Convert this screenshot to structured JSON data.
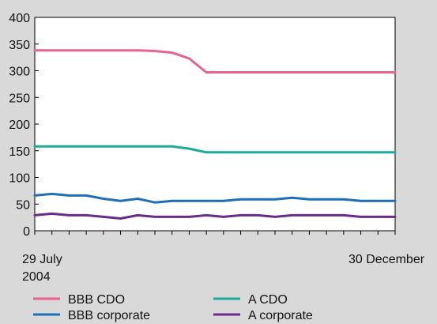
{
  "chart_data": {
    "type": "line",
    "x": [
      "29 July 2004",
      "",
      "",
      "",
      "",
      "",
      "",
      "",
      "",
      "",
      "",
      "",
      "",
      "",
      "",
      "",
      "",
      "",
      "",
      "",
      "",
      "30 December"
    ],
    "x_tick_labels": [
      [
        "29 July",
        "2004"
      ],
      [
        "30 December"
      ]
    ],
    "ylim": [
      0,
      400
    ],
    "y_ticks": [
      0,
      50,
      100,
      150,
      200,
      250,
      300,
      350,
      400
    ],
    "grid": false,
    "legend_position": "bottom",
    "series": [
      {
        "name": "BBB CDO",
        "color": "#e8638f",
        "values": [
          338,
          338,
          338,
          338,
          338,
          338,
          338,
          337,
          334,
          323,
          297,
          297,
          297,
          297,
          297,
          297,
          297,
          297,
          297,
          297,
          297,
          297
        ]
      },
      {
        "name": "A CDO",
        "color": "#1aab9b",
        "values": [
          158,
          158,
          158,
          158,
          158,
          158,
          158,
          158,
          158,
          154,
          147,
          147,
          147,
          147,
          147,
          147,
          147,
          147,
          147,
          147,
          147,
          147
        ]
      },
      {
        "name": "BBB corporate",
        "color": "#1d6fb8",
        "values": [
          66,
          69,
          66,
          66,
          60,
          56,
          60,
          53,
          56,
          56,
          56,
          56,
          59,
          59,
          59,
          62,
          59,
          59,
          59,
          56,
          56,
          56
        ]
      },
      {
        "name": "A corporate",
        "color": "#6a2b8c",
        "values": [
          29,
          32,
          29,
          29,
          26,
          23,
          29,
          26,
          26,
          26,
          29,
          26,
          29,
          29,
          26,
          29,
          29,
          29,
          29,
          26,
          26,
          26
        ]
      }
    ]
  }
}
